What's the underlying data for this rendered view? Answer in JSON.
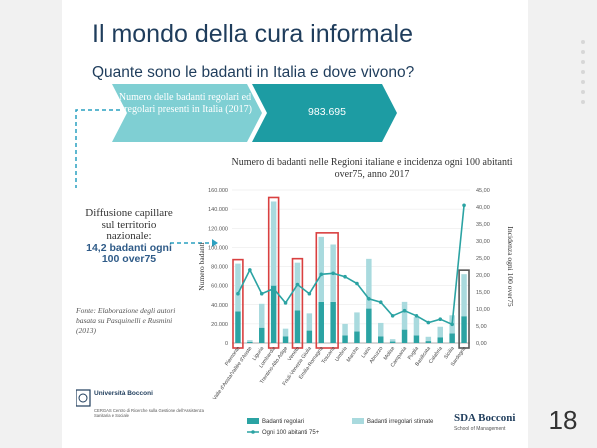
{
  "page_number": "18",
  "title": "Il mondo della cura informale",
  "subtitle": "Quante sono le badanti in Italia e dove vivono?",
  "banner": {
    "label": "Numero delle badanti regolari ed irregolari presenti in Italia (2017)",
    "value": "983.695"
  },
  "left_text": {
    "line1": "Diffusione capillare sul territorio nazionale:",
    "highlight": "14,2 badanti ogni 100 over75"
  },
  "source": "Fonte: Elaborazione degli autori basata su Pasquinelli e Rusmini (2013)",
  "chart_data": {
    "type": "bar",
    "title": "Numero di badanti nelle Regioni italiane e incidenza ogni 100 abitanti over75, anno 2017",
    "ylabel": "Numero badanti",
    "y2label": "Incidenza ogni 100 over75",
    "ylim": [
      0,
      160000
    ],
    "y2lim": [
      0,
      45
    ],
    "y_ticks": [
      "0",
      "20.000",
      "40.000",
      "60.000",
      "80.000",
      "100.000",
      "120.000",
      "140.000",
      "160.000"
    ],
    "y2_ticks": [
      "0,00",
      "5,00",
      "10,00",
      "15,00",
      "20,00",
      "25,00",
      "30,00",
      "35,00",
      "40,00",
      "45,00"
    ],
    "categories": [
      "Piemonte",
      "Valle d'Aosta/Vallée d'Aoste",
      "Liguria",
      "Lombardia",
      "Trentino-Alto Adige",
      "Veneto",
      "Friuli-Venezia Giulia",
      "Emilia-Romagna",
      "Toscana",
      "Umbria",
      "Marche",
      "Lazio",
      "Abruzzo",
      "Molise",
      "Campania",
      "Puglia",
      "Basilicata",
      "Calabria",
      "Sicilia",
      "Sardegna"
    ],
    "series": [
      {
        "name": "Badanti regolari",
        "color": "#2ba3a3",
        "values": [
          33000,
          1200,
          16000,
          60000,
          7000,
          34000,
          13000,
          43000,
          43000,
          8000,
          12000,
          36000,
          7000,
          1500,
          14000,
          8000,
          2000,
          6000,
          10000,
          28000
        ]
      },
      {
        "name": "Badanti irregolari stimate",
        "color": "#a9dade",
        "values": [
          50000,
          1800,
          25000,
          88000,
          8000,
          50000,
          18000,
          68000,
          60000,
          12000,
          20000,
          52000,
          14000,
          2500,
          29000,
          19000,
          4500,
          11000,
          19000,
          44000
        ]
      },
      {
        "name": "Ogni 100 abitanti 75+",
        "color": "#2ba3a3",
        "axis": "right",
        "values": [
          14.5,
          21.5,
          14.5,
          16,
          11.8,
          17.2,
          14.5,
          20.2,
          20.5,
          19.5,
          17.5,
          13,
          12,
          8,
          9.5,
          8,
          6,
          7,
          5.5,
          40.5
        ]
      }
    ],
    "highlight_groups": [
      {
        "from": 0,
        "to": 0,
        "color": "#d94040"
      },
      {
        "from": 3,
        "to": 3,
        "color": "#d94040"
      },
      {
        "from": 5,
        "to": 5,
        "color": "#d94040"
      },
      {
        "from": 7,
        "to": 8,
        "color": "#d94040"
      },
      {
        "from": 19,
        "to": 19,
        "color": "#555555"
      }
    ],
    "legend_position": "bottom"
  },
  "footer": {
    "university": "Università Bocconi",
    "unit": "CERGAS Centro di Ricerche sulla Gestione dell'Assistenza Sanitaria e Sociale",
    "sda": "SDA Bocconi",
    "sda_sub": "School of Management"
  },
  "colors": {
    "title": "#1f3d5c",
    "banner_dark": "#1d9ca3",
    "banner_light": "#7fcfd3",
    "accent": "#2ba3a3"
  }
}
